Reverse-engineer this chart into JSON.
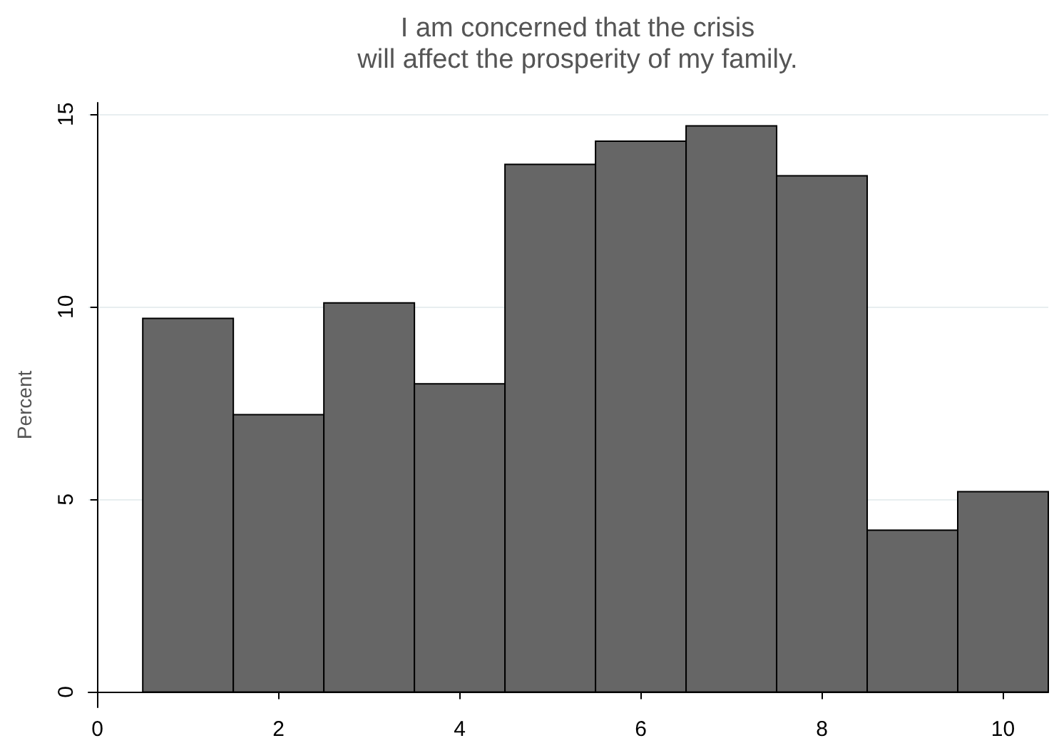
{
  "chart_data": {
    "type": "histogram",
    "title": "I am concerned that the crisis\nwill affect the prosperity of my family.",
    "ylabel": "Percent",
    "bins": [
      0.5,
      1.5,
      2.5,
      3.5,
      4.5,
      5.5,
      6.5,
      7.5,
      8.5,
      9.5,
      10.5
    ],
    "values": [
      9.7,
      7.2,
      10.1,
      8.0,
      13.7,
      14.3,
      14.7,
      13.4,
      4.2,
      5.2
    ],
    "color": "#666666",
    "xlim": [
      -0.1,
      10.5
    ],
    "xticks": [
      0,
      2,
      4,
      6,
      8,
      10
    ],
    "ylim": [
      -0.4,
      15.3
    ],
    "yticks": [
      0,
      5,
      10,
      15
    ],
    "grid": "y"
  }
}
